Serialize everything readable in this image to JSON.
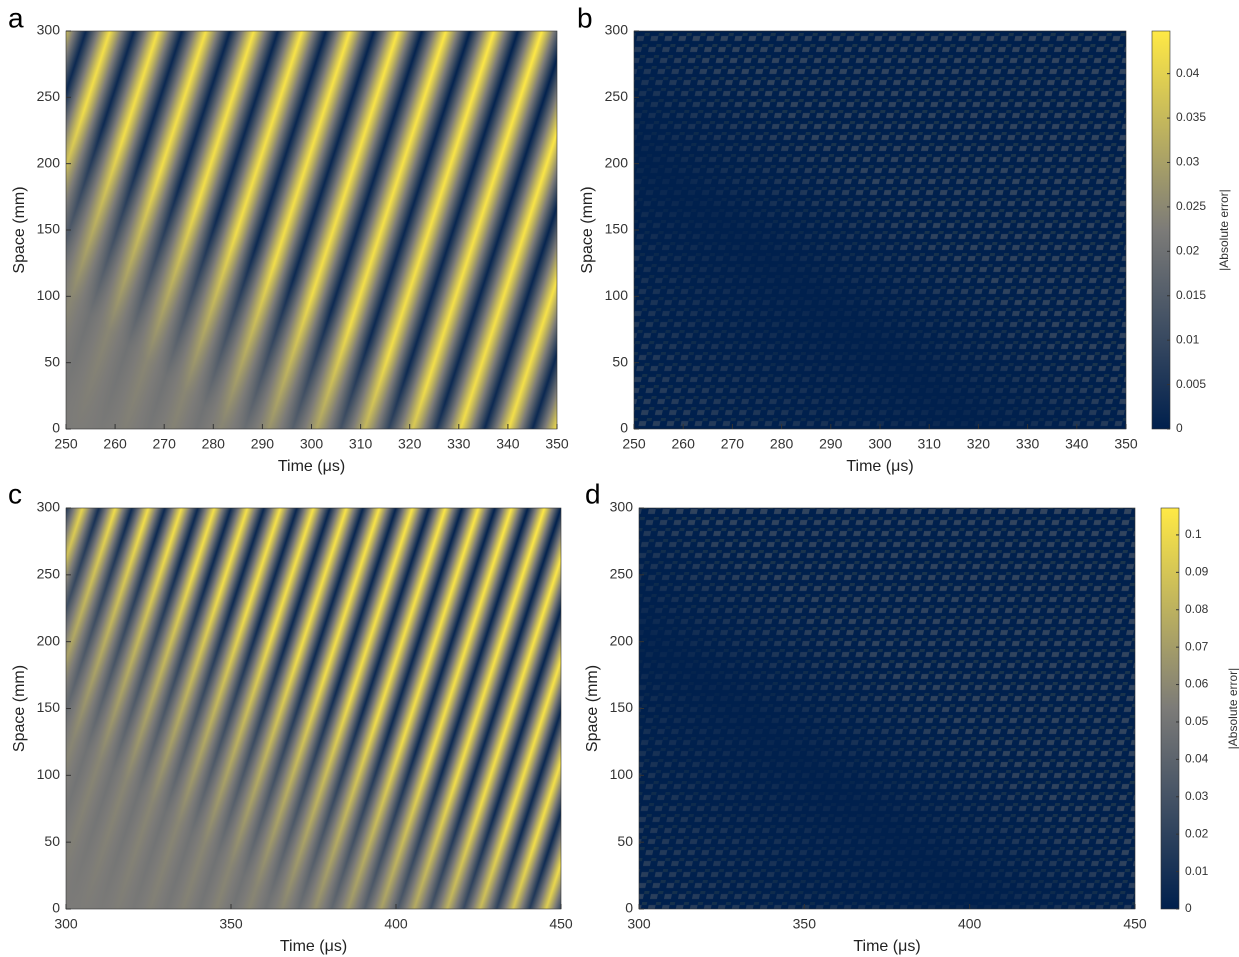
{
  "chart_data": [
    {
      "type": "heatmap",
      "panel_label": "a",
      "xlabel": "Time (μs)",
      "ylabel": "Space (mm)",
      "xlim": [
        250,
        350
      ],
      "xticks": [
        250,
        260,
        270,
        280,
        290,
        300,
        310,
        320,
        330,
        340,
        350
      ],
      "ylim": [
        0,
        300
      ],
      "yticks": [
        0,
        50,
        100,
        150,
        200,
        250,
        300
      ],
      "colormap": [
        "#00204d",
        "#7c7b78",
        "#ffe945"
      ]
    },
    {
      "type": "heatmap",
      "panel_label": "b",
      "xlabel": "Time (μs)",
      "ylabel": "Space (mm)",
      "xlim": [
        250,
        350
      ],
      "xticks": [
        250,
        260,
        270,
        280,
        290,
        300,
        310,
        320,
        330,
        340,
        350
      ],
      "ylim": [
        0,
        300
      ],
      "yticks": [
        0,
        50,
        100,
        150,
        200,
        250,
        300
      ],
      "colormap": [
        "#00204d",
        "#7c7b78",
        "#ffe945"
      ],
      "colorbar": {
        "label": "|Absolute error|",
        "lim": [
          0,
          0.0448
        ],
        "ticks": [
          0,
          0.005,
          0.01,
          0.015,
          0.02,
          0.025,
          0.03,
          0.035,
          0.04
        ]
      }
    },
    {
      "type": "heatmap",
      "panel_label": "c",
      "xlabel": "Time (μs)",
      "ylabel": "Space (mm)",
      "xlim": [
        300,
        450
      ],
      "xticks": [
        300,
        350,
        400,
        450
      ],
      "ylim": [
        0,
        300
      ],
      "yticks": [
        0,
        50,
        100,
        150,
        200,
        250,
        300
      ],
      "colormap": [
        "#00204d",
        "#7c7b78",
        "#ffe945"
      ]
    },
    {
      "type": "heatmap",
      "panel_label": "d",
      "xlabel": "Time (μs)",
      "ylabel": "Space (mm)",
      "xlim": [
        300,
        450
      ],
      "xticks": [
        300,
        350,
        400,
        450
      ],
      "ylim": [
        0,
        300
      ],
      "yticks": [
        0,
        50,
        100,
        150,
        200,
        250,
        300
      ],
      "colormap": [
        "#00204d",
        "#7c7b78",
        "#ffe945"
      ],
      "colorbar": {
        "label": "|Absolute error|",
        "lim": [
          0,
          0.1072
        ],
        "ticks": [
          0,
          0.01,
          0.02,
          0.03,
          0.04,
          0.05,
          0.06,
          0.07,
          0.08,
          0.09,
          0.1
        ]
      }
    }
  ]
}
